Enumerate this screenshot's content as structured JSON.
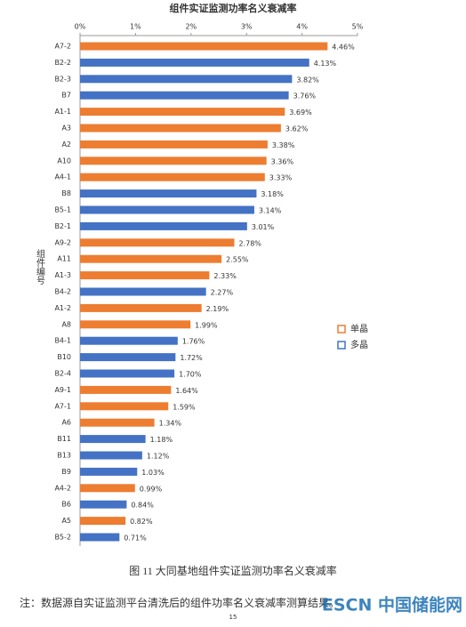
{
  "chart_data": {
    "type": "bar",
    "orientation": "horizontal",
    "title": "组件实证监测功率名义衰减率",
    "y_label": "组件编号",
    "categories": [
      "A7-2",
      "B2-2",
      "B2-3",
      "B7",
      "A1-1",
      "A3",
      "A2",
      "A10",
      "A4-1",
      "B8",
      "B5-1",
      "B2-1",
      "A9-2",
      "A11",
      "A1-3",
      "B4-2",
      "A1-2",
      "A8",
      "B4-1",
      "B10",
      "B2-4",
      "A9-1",
      "A7-1",
      "A6",
      "B11",
      "B13",
      "B9",
      "A4-2",
      "B6",
      "A5",
      "B5-2"
    ],
    "series": [
      {
        "name": "单晶",
        "color": "#ed7d31",
        "values": [
          4.46,
          null,
          null,
          null,
          3.69,
          3.62,
          3.38,
          3.36,
          3.33,
          null,
          null,
          null,
          2.78,
          2.55,
          2.33,
          null,
          2.19,
          1.99,
          null,
          null,
          null,
          1.64,
          1.59,
          1.34,
          null,
          null,
          null,
          0.99,
          null,
          0.82,
          null
        ],
        "value_labels": [
          "4.46%",
          null,
          null,
          null,
          "3.69%",
          "3.62%",
          "3.38%",
          "3.36%",
          "3.33%",
          null,
          null,
          null,
          "2.78%",
          "2.55%",
          "2.33%",
          null,
          "2.19%",
          "1.99%",
          null,
          null,
          null,
          "1.64%",
          "1.59%",
          "1.34%",
          null,
          null,
          null,
          "0.99%",
          null,
          "0.82%",
          null
        ]
      },
      {
        "name": "多晶",
        "color": "#4472c4",
        "values": [
          null,
          4.13,
          3.82,
          3.76,
          null,
          null,
          null,
          null,
          null,
          3.18,
          3.14,
          3.01,
          null,
          null,
          null,
          2.27,
          null,
          null,
          1.76,
          1.72,
          1.7,
          null,
          null,
          null,
          1.18,
          1.12,
          1.03,
          null,
          0.84,
          null,
          0.71
        ],
        "value_labels": [
          null,
          "4.13%",
          "3.82%",
          "3.76%",
          null,
          null,
          null,
          null,
          null,
          "3.18%",
          "3.14%",
          "3.01%",
          null,
          null,
          null,
          "2.27%",
          null,
          null,
          "1.76%",
          "1.72%",
          "1.70%",
          null,
          null,
          null,
          "1.18%",
          "1.12%",
          "1.03%",
          null,
          "0.84%",
          null,
          "0.71%"
        ]
      }
    ],
    "xlim": [
      0,
      5
    ],
    "xticks": [
      {
        "value": 0,
        "label": "0%"
      },
      {
        "value": 1,
        "label": "1%"
      },
      {
        "value": 2,
        "label": "2%"
      },
      {
        "value": 3,
        "label": "3%"
      },
      {
        "value": 4,
        "label": "4%"
      },
      {
        "value": 5,
        "label": "5%"
      }
    ],
    "legend": "right"
  },
  "caption": "图 11  大同基地组件实证监测功率名义衰减率",
  "note": "注：数据源自实证监测平台清洗后的组件功率名义衰减率测算结果。",
  "page_number": "15",
  "watermark": "ESCN 中国储能网"
}
